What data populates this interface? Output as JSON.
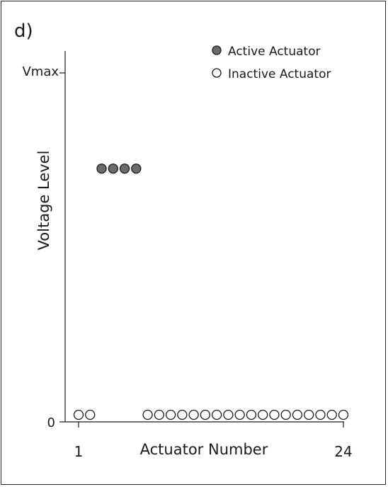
{
  "panel_label": "d)",
  "legend": {
    "active": "Active Actuator",
    "inactive": "Inactive Actuator"
  },
  "colors": {
    "active_fill": "#6b6b6b",
    "inactive_fill": "#ffffff",
    "stroke": "#1a1a1a"
  },
  "chart_data": {
    "type": "scatter",
    "title": "",
    "xlabel": "Actuator Number",
    "ylabel": "Voltage Level",
    "x_tick_labels": [
      "1",
      "24"
    ],
    "y_tick_labels": [
      "0",
      "Vmax"
    ],
    "xlim": [
      1,
      24
    ],
    "ylim": [
      0,
      1
    ],
    "legend_position": "top-right",
    "grid": false,
    "series": [
      {
        "name": "Active Actuator",
        "x": [
          3,
          4,
          5,
          6
        ],
        "y": [
          0.72,
          0.72,
          0.72,
          0.72
        ]
      },
      {
        "name": "Inactive Actuator",
        "x": [
          1,
          2,
          7,
          8,
          9,
          10,
          11,
          12,
          13,
          14,
          15,
          16,
          17,
          18,
          19,
          20,
          21,
          22,
          23,
          24
        ],
        "y": [
          0,
          0,
          0,
          0,
          0,
          0,
          0,
          0,
          0,
          0,
          0,
          0,
          0,
          0,
          0,
          0,
          0,
          0,
          0,
          0
        ]
      }
    ]
  }
}
